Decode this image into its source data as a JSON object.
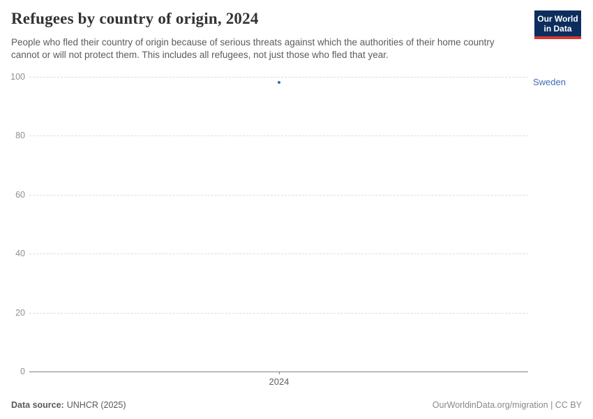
{
  "header": {
    "title": "Refugees by country of origin, 2024",
    "subtitle": "People who fled their country of origin because of serious threats against which the authorities of their home country cannot or will not protect them. This includes all refugees, not just those who fled that year.",
    "logo": {
      "line1": "Our World",
      "line2": "in Data",
      "bg_color": "#0c2e5e",
      "stripe_color": "#d8352f"
    }
  },
  "chart_data": {
    "type": "scatter",
    "title": "Refugees by country of origin, 2024",
    "x": [
      2024
    ],
    "series": [
      {
        "name": "Sweden",
        "values": [
          98
        ],
        "color": "#4063af",
        "label_color": "#3f6bb4"
      }
    ],
    "ylim": [
      0,
      100
    ],
    "yticks": [
      0,
      20,
      40,
      60,
      80,
      100
    ],
    "xtick_labels": [
      "2024"
    ],
    "grid": true,
    "gridline_style": "dashed",
    "legend_position": "right-of-point"
  },
  "footer": {
    "source_label": "Data source:",
    "source_value": "UNHCR (2025)",
    "credit_link": "OurWorldinData.org/migration",
    "credit_suffix": " | CC BY"
  },
  "colors": {
    "title": "#333333",
    "subtitle": "#5b5b5b",
    "gridline": "#dcdcdc",
    "axis": "#808080",
    "tick_label": "#8f8f8f"
  }
}
